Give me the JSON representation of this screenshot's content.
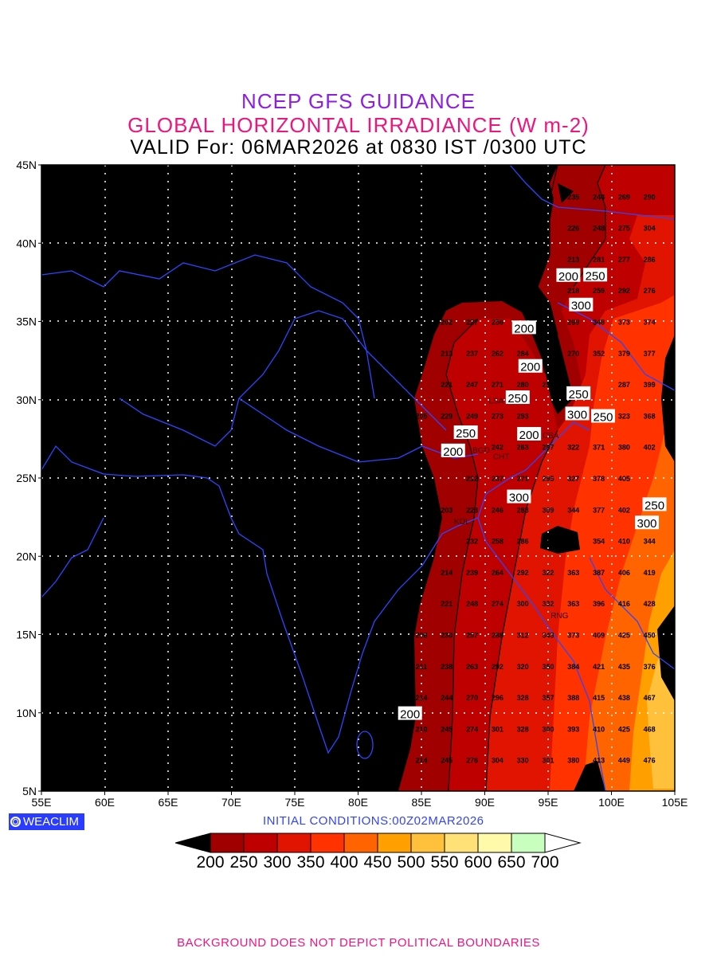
{
  "title": {
    "line1": "NCEP GFS GUIDANCE",
    "line2": "GLOBAL HORIZONTAL IRRADIANCE (W m-2)",
    "line3": "VALID For: 06MAR2026 at 0830 IST /0300 UTC"
  },
  "axes": {
    "lat_labels": [
      "45N",
      "40N",
      "35N",
      "30N",
      "25N",
      "20N",
      "15N",
      "10N",
      "5N"
    ],
    "lon_labels": [
      "55E",
      "60E",
      "65E",
      "70E",
      "75E",
      "80E",
      "85E",
      "90E",
      "95E",
      "100E",
      "105E"
    ],
    "lat_range": [
      5,
      45
    ],
    "lon_range": [
      55,
      105
    ]
  },
  "logo": "WEACLIM",
  "initial_conditions": "INITIAL  CONDITIONS:00Z02MAR2026",
  "colorbar": {
    "levels": [
      "200",
      "250",
      "300",
      "350",
      "400",
      "450",
      "500",
      "550",
      "600",
      "650",
      "700"
    ],
    "colors": [
      "#a00000",
      "#bf0000",
      "#e01400",
      "#ff3200",
      "#ff6400",
      "#ffa000",
      "#ffc03c",
      "#ffe178",
      "#fffaaa",
      "#c8ffbe"
    ],
    "below_color": "#000000",
    "above_color": "#ffffff"
  },
  "contour_labels": [
    {
      "text": "200",
      "lat": 38.6,
      "lon": 96.6
    },
    {
      "text": "250",
      "lat": 37.3,
      "lon": 97.9
    },
    {
      "text": "300",
      "lat": 35.7,
      "lon": 97.6
    },
    {
      "text": "200",
      "lat": 34.6,
      "lon": 93.1
    },
    {
      "text": "200",
      "lat": 32.8,
      "lon": 93.6
    },
    {
      "text": "250",
      "lat": 30.8,
      "lon": 92.6
    },
    {
      "text": "250",
      "lat": 30.4,
      "lon": 97.4
    },
    {
      "text": "300",
      "lat": 29.1,
      "lon": 97.3
    },
    {
      "text": "250",
      "lat": 29.3,
      "lon": 98.9
    },
    {
      "text": "250",
      "lat": 27.9,
      "lon": 88.5
    },
    {
      "text": "200",
      "lat": 27.4,
      "lon": 87.5
    },
    {
      "text": "200",
      "lat": 27.8,
      "lon": 93.5
    },
    {
      "text": "300",
      "lat": 23.8,
      "lon": 92.7
    },
    {
      "text": "250",
      "lat": 23.3,
      "lon": 103.4
    },
    {
      "text": "300",
      "lat": 22.8,
      "lon": 102.8
    },
    {
      "text": "200",
      "lat": 9.6,
      "lon": 84.1
    }
  ],
  "stations": [
    {
      "text": "LSA",
      "lat": 29.6,
      "lon": 90.9
    },
    {
      "text": "CBA",
      "lat": 27.4,
      "lon": 95.2
    },
    {
      "text": "CHT",
      "lat": 26.4,
      "lon": 91.3
    },
    {
      "text": "BGD",
      "lat": 26.8,
      "lon": 88.9
    },
    {
      "text": "KOL",
      "lat": 22.6,
      "lon": 88.2
    },
    {
      "text": "RNG",
      "lat": 16.9,
      "lon": 95.9
    }
  ],
  "grid_values": [
    {
      "lat": 43,
      "vals": [
        [
          97,
          235
        ],
        [
          99,
          244
        ],
        [
          101,
          269
        ],
        [
          103,
          290
        ]
      ]
    },
    {
      "lat": 41,
      "vals": [
        [
          97,
          226
        ],
        [
          99,
          248
        ],
        [
          101,
          275
        ],
        [
          103,
          304
        ]
      ]
    },
    {
      "lat": 39,
      "vals": [
        [
          97,
          213
        ],
        [
          99,
          281
        ],
        [
          101,
          277
        ],
        [
          103,
          286
        ]
      ]
    },
    {
      "lat": 37,
      "vals": [
        [
          97,
          218
        ],
        [
          99,
          259
        ],
        [
          101,
          292
        ],
        [
          103,
          276
        ]
      ]
    },
    {
      "lat": 35,
      "vals": [
        [
          87,
          202
        ],
        [
          89,
          227
        ],
        [
          91,
          256
        ],
        [
          97,
          269
        ],
        [
          99,
          348
        ],
        [
          101,
          373
        ],
        [
          103,
          374
        ]
      ]
    },
    {
      "lat": 33,
      "vals": [
        [
          87,
          213
        ],
        [
          89,
          237
        ],
        [
          91,
          262
        ],
        [
          93,
          284
        ],
        [
          95,
          208
        ],
        [
          97,
          270
        ],
        [
          99,
          352
        ],
        [
          101,
          379
        ],
        [
          103,
          377
        ]
      ]
    },
    {
      "lat": 31,
      "vals": [
        [
          87,
          221
        ],
        [
          89,
          247
        ],
        [
          91,
          271
        ],
        [
          93,
          280
        ],
        [
          95,
          255
        ],
        [
          101,
          287
        ],
        [
          103,
          399
        ]
      ]
    },
    {
      "lat": 29,
      "vals": [
        [
          85,
          205
        ],
        [
          87,
          229
        ],
        [
          89,
          249
        ],
        [
          91,
          273
        ],
        [
          93,
          293
        ],
        [
          101,
          323
        ],
        [
          103,
          368
        ]
      ]
    },
    {
      "lat": 27,
      "vals": [
        [
          91,
          242
        ],
        [
          93,
          263
        ],
        [
          95,
          297
        ],
        [
          97,
          322
        ],
        [
          99,
          371
        ],
        [
          101,
          380
        ],
        [
          103,
          402
        ]
      ]
    },
    {
      "lat": 25,
      "vals": [
        [
          89,
          212
        ],
        [
          91,
          237
        ],
        [
          93,
          271
        ],
        [
          95,
          295
        ],
        [
          97,
          327
        ],
        [
          99,
          378
        ],
        [
          101,
          405
        ]
      ]
    },
    {
      "lat": 23,
      "vals": [
        [
          87,
          203
        ],
        [
          89,
          223
        ],
        [
          91,
          246
        ],
        [
          93,
          283
        ],
        [
          95,
          309
        ],
        [
          97,
          344
        ],
        [
          99,
          377
        ],
        [
          101,
          402
        ]
      ]
    },
    {
      "lat": 21,
      "vals": [
        [
          89,
          232
        ],
        [
          91,
          258
        ],
        [
          93,
          286
        ],
        [
          95,
          315
        ],
        [
          99,
          354
        ],
        [
          101,
          410
        ],
        [
          103,
          344
        ]
      ]
    },
    {
      "lat": 19,
      "vals": [
        [
          87,
          214
        ],
        [
          89,
          239
        ],
        [
          91,
          264
        ],
        [
          93,
          292
        ],
        [
          95,
          322
        ],
        [
          97,
          363
        ],
        [
          99,
          387
        ],
        [
          101,
          406
        ],
        [
          103,
          419
        ]
      ]
    },
    {
      "lat": 17,
      "vals": [
        [
          87,
          221
        ],
        [
          89,
          248
        ],
        [
          91,
          274
        ],
        [
          93,
          300
        ],
        [
          95,
          332
        ],
        [
          97,
          363
        ],
        [
          99,
          396
        ],
        [
          101,
          416
        ],
        [
          103,
          428
        ]
      ]
    },
    {
      "lat": 15,
      "vals": [
        [
          85,
          206
        ],
        [
          87,
          230
        ],
        [
          89,
          257
        ],
        [
          91,
          288
        ],
        [
          93,
          312
        ],
        [
          95,
          343
        ],
        [
          97,
          373
        ],
        [
          99,
          409
        ],
        [
          101,
          425
        ],
        [
          103,
          450
        ]
      ]
    },
    {
      "lat": 13,
      "vals": [
        [
          85,
          211
        ],
        [
          87,
          238
        ],
        [
          89,
          263
        ],
        [
          91,
          292
        ],
        [
          93,
          320
        ],
        [
          95,
          350
        ],
        [
          97,
          384
        ],
        [
          99,
          421
        ],
        [
          101,
          435
        ],
        [
          103,
          376
        ]
      ]
    },
    {
      "lat": 11,
      "vals": [
        [
          85,
          214
        ],
        [
          87,
          244
        ],
        [
          89,
          270
        ],
        [
          91,
          296
        ],
        [
          93,
          328
        ],
        [
          95,
          357
        ],
        [
          97,
          388
        ],
        [
          99,
          415
        ],
        [
          101,
          438
        ],
        [
          103,
          467
        ]
      ]
    },
    {
      "lat": 9,
      "vals": [
        [
          85,
          210
        ],
        [
          87,
          245
        ],
        [
          89,
          274
        ],
        [
          91,
          301
        ],
        [
          93,
          328
        ],
        [
          95,
          300
        ],
        [
          97,
          393
        ],
        [
          99,
          410
        ],
        [
          101,
          425
        ],
        [
          103,
          468
        ]
      ]
    },
    {
      "lat": 7,
      "vals": [
        [
          85,
          214
        ],
        [
          87,
          245
        ],
        [
          89,
          276
        ],
        [
          91,
          304
        ],
        [
          93,
          330
        ],
        [
          95,
          301
        ],
        [
          97,
          380
        ],
        [
          99,
          413
        ],
        [
          101,
          449
        ],
        [
          103,
          476
        ]
      ]
    }
  ],
  "footer": "BACKGROUND DOES NOT DEPICT POLITICAL BOUNDARIES"
}
